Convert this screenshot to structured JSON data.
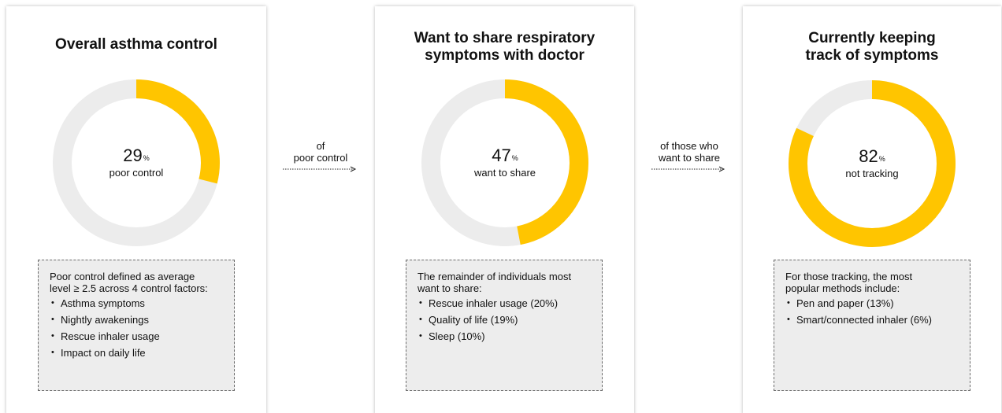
{
  "colors": {
    "accent": "#ffc500",
    "track": "#ececec",
    "box_bg": "#ededed"
  },
  "panels": [
    {
      "title_lines": [
        "Overall asthma control"
      ],
      "value": 29,
      "value_text": "29",
      "pct_symbol": "%",
      "value_label": "poor control",
      "note_intro_lines": [
        "Poor control defined as average",
        "level ≥ 2.5 across 4 control factors:"
      ],
      "items": [
        "Asthma symptoms",
        "Nightly awakenings",
        "Rescue inhaler usage",
        "Impact on daily life"
      ]
    },
    {
      "title_lines": [
        "Want to share respiratory",
        "symptoms with doctor"
      ],
      "value": 47,
      "value_text": "47",
      "pct_symbol": "%",
      "value_label": "want to share",
      "note_intro_lines": [
        "The remainder of individuals most",
        "want to share:"
      ],
      "items": [
        "Rescue inhaler usage (20%)",
        "Quality of life (19%)",
        "Sleep (10%)"
      ]
    },
    {
      "title_lines": [
        "Currently keeping",
        "track of symptoms"
      ],
      "value": 82,
      "value_text": "82",
      "pct_symbol": "%",
      "value_label": "not tracking",
      "note_intro_lines": [
        "For those tracking, the most",
        "popular methods include:"
      ],
      "items": [
        "Pen and paper (13%)",
        "Smart/connected inhaler (6%)"
      ]
    }
  ],
  "connectors": [
    {
      "label_lines": [
        "of",
        "poor control"
      ]
    },
    {
      "label_lines": [
        "of those who",
        "want to share"
      ]
    }
  ]
}
